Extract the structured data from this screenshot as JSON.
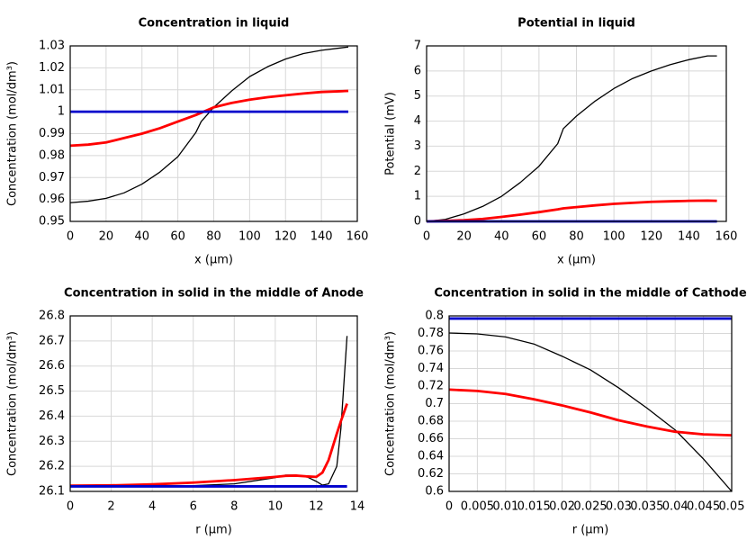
{
  "chart_data": [
    {
      "type": "line",
      "title": "Concentration in liquid",
      "xlabel": "x (µm)",
      "ylabel": "Concentration (mol/dm³)",
      "x": [
        0,
        10,
        20,
        30,
        40,
        50,
        60,
        70,
        73,
        80,
        90,
        100,
        110,
        120,
        130,
        140,
        150,
        155
      ],
      "series": [
        {
          "color": "#000000",
          "values": [
            0.9585,
            0.9592,
            0.9605,
            0.963,
            0.967,
            0.9725,
            0.9795,
            0.9905,
            0.9955,
            1.002,
            1.0095,
            1.016,
            1.0205,
            1.024,
            1.0265,
            1.028,
            1.029,
            1.0295
          ]
        },
        {
          "color": "#ff0000",
          "values": [
            0.9845,
            0.985,
            0.986,
            0.988,
            0.99,
            0.9925,
            0.9955,
            0.9985,
            0.9995,
            1.002,
            1.004,
            1.0055,
            1.0066,
            1.0075,
            1.0083,
            1.009,
            1.0093,
            1.0095
          ]
        },
        {
          "color": "#0000cc",
          "values": [
            1,
            1,
            1,
            1,
            1,
            1,
            1,
            1,
            1,
            1,
            1,
            1,
            1,
            1,
            1,
            1,
            1,
            1
          ]
        }
      ],
      "xlim": [
        0,
        160
      ],
      "xticks": [
        0,
        20,
        40,
        60,
        80,
        100,
        120,
        140,
        160
      ],
      "ylim": [
        0.95,
        1.03
      ],
      "yticks": [
        0.95,
        0.96,
        0.97,
        0.98,
        0.99,
        1,
        1.01,
        1.02,
        1.03
      ],
      "grid": true
    },
    {
      "type": "line",
      "title": "Potential in liquid",
      "xlabel": "x (µm)",
      "ylabel": "Potential (mV)",
      "x": [
        0,
        10,
        20,
        30,
        40,
        50,
        60,
        70,
        73,
        80,
        90,
        100,
        110,
        120,
        130,
        140,
        150,
        155
      ],
      "series": [
        {
          "color": "#000000",
          "values": [
            0,
            0.08,
            0.3,
            0.6,
            1.0,
            1.55,
            2.2,
            3.1,
            3.7,
            4.2,
            4.8,
            5.3,
            5.7,
            6.0,
            6.25,
            6.45,
            6.6,
            6.6
          ]
        },
        {
          "color": "#ff0000",
          "values": [
            0,
            0.02,
            0.05,
            0.1,
            0.18,
            0.27,
            0.37,
            0.48,
            0.52,
            0.57,
            0.64,
            0.7,
            0.74,
            0.78,
            0.8,
            0.82,
            0.83,
            0.82
          ]
        },
        {
          "color": "#0000cc",
          "values": [
            0,
            0,
            0,
            0,
            0,
            0,
            0,
            0,
            0,
            0,
            0,
            0,
            0,
            0,
            0,
            0,
            0,
            0
          ]
        }
      ],
      "xlim": [
        0,
        160
      ],
      "xticks": [
        0,
        20,
        40,
        60,
        80,
        100,
        120,
        140,
        160
      ],
      "ylim": [
        0,
        7
      ],
      "yticks": [
        0,
        1,
        2,
        3,
        4,
        5,
        6,
        7
      ],
      "grid": true
    },
    {
      "type": "line",
      "title": "Concentration in solid in the middle of Anode",
      "xlabel": "r (µm)",
      "ylabel": "Concentration (mol/dm³)",
      "x": [
        0,
        2,
        4,
        6,
        8,
        10,
        10.5,
        11,
        11.5,
        12,
        12.3,
        12.6,
        13,
        13.2,
        13.5
      ],
      "series": [
        {
          "color": "#000000",
          "values": [
            26.12,
            26.12,
            26.121,
            26.123,
            26.13,
            26.155,
            26.165,
            26.165,
            26.16,
            26.14,
            26.125,
            26.13,
            26.2,
            26.35,
            26.72
          ]
        },
        {
          "color": "#ff0000",
          "values": [
            26.123,
            26.124,
            26.128,
            26.135,
            26.145,
            26.158,
            26.162,
            26.163,
            26.16,
            26.158,
            26.175,
            26.225,
            26.33,
            26.38,
            26.45
          ]
        },
        {
          "color": "#0000cc",
          "values": [
            26.12,
            26.12,
            26.12,
            26.12,
            26.12,
            26.12,
            26.12,
            26.12,
            26.12,
            26.12,
            26.12,
            26.12,
            26.12,
            26.12,
            26.12
          ]
        }
      ],
      "xlim": [
        0,
        14
      ],
      "xticks": [
        0,
        2,
        4,
        6,
        8,
        10,
        12,
        14
      ],
      "ylim": [
        26.1,
        26.8
      ],
      "yticks": [
        26.1,
        26.2,
        26.3,
        26.4,
        26.5,
        26.6,
        26.7,
        26.8
      ],
      "grid": true
    },
    {
      "type": "line",
      "title": "Concentration in solid in the middle of Cathode",
      "xlabel": "r (µm)",
      "ylabel": "Concentration (mol/dm³)",
      "x": [
        0,
        0.005,
        0.01,
        0.015,
        0.02,
        0.025,
        0.03,
        0.035,
        0.04,
        0.045,
        0.05
      ],
      "series": [
        {
          "color": "#000000",
          "values": [
            0.7805,
            0.7795,
            0.776,
            0.768,
            0.754,
            0.7385,
            0.718,
            0.695,
            0.67,
            0.637,
            0.6
          ]
        },
        {
          "color": "#ff0000",
          "values": [
            0.716,
            0.7145,
            0.711,
            0.705,
            0.698,
            0.69,
            0.681,
            0.674,
            0.668,
            0.665,
            0.664
          ]
        },
        {
          "color": "#0000cc",
          "values": [
            0.797,
            0.797,
            0.797,
            0.797,
            0.797,
            0.797,
            0.797,
            0.797,
            0.797,
            0.797,
            0.797
          ]
        }
      ],
      "xlim": [
        0,
        0.05
      ],
      "xticks": [
        0,
        0.005,
        0.01,
        0.015,
        0.02,
        0.025,
        0.03,
        0.035,
        0.04,
        0.045,
        0.05
      ],
      "ylim": [
        0.6,
        0.8
      ],
      "yticks": [
        0.6,
        0.62,
        0.64,
        0.66,
        0.68,
        0.7,
        0.72,
        0.74,
        0.76,
        0.78,
        0.8
      ],
      "grid": true
    }
  ]
}
